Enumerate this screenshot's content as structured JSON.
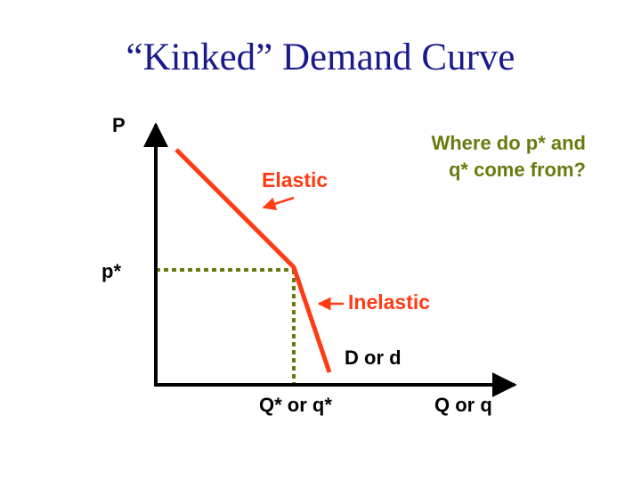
{
  "title": "“Kinked” Demand Curve",
  "axes": {
    "y_label": "P",
    "x_label": "Q or q",
    "price_marker": "p*",
    "quantity_marker": "Q* or q*"
  },
  "curve": {
    "label": "D or d",
    "upper_segment_label": "Elastic",
    "lower_segment_label": "Inelastic"
  },
  "question": "Where do p* and q* come from?",
  "colors": {
    "title": "#1a1a8c",
    "curve": "#ff3b14",
    "guide_lines": "#6b7a10",
    "question_text": "#6b7a10",
    "axes": "#000000"
  }
}
